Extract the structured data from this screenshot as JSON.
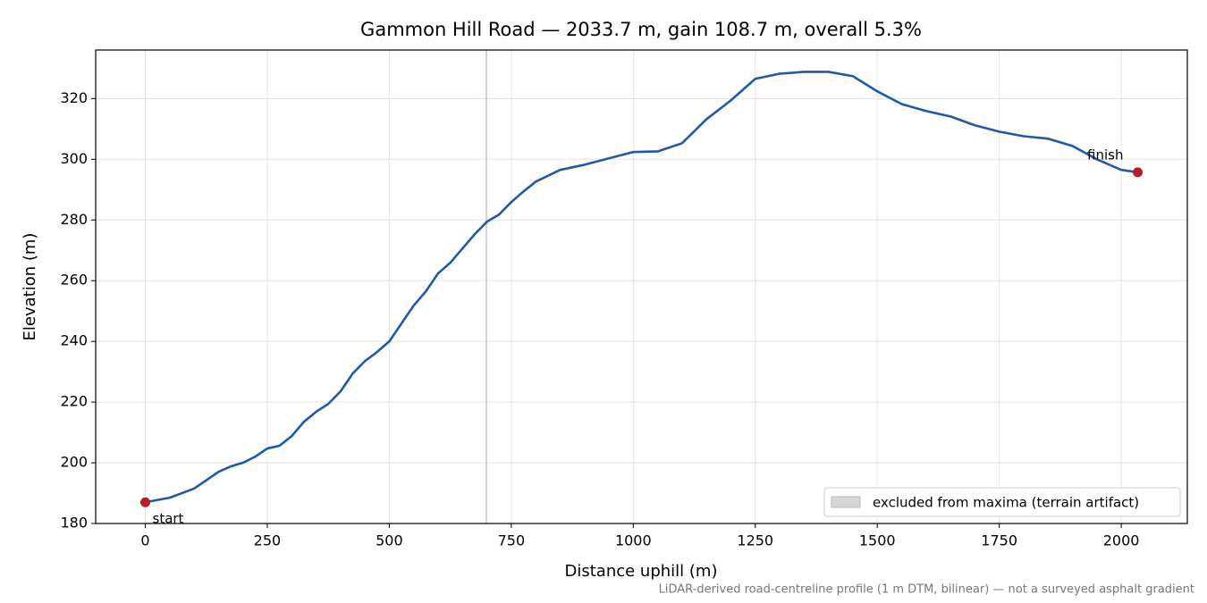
{
  "chart_data": {
    "type": "line",
    "title": "Gammon Hill Road — 2033.7 m, gain 108.7 m, overall 5.3%",
    "x_label": "Distance uphill (m)",
    "y_label": "Elevation (m)",
    "footnote": "LiDAR-derived road-centreline profile (1 m DTM, bilinear) — not a surveyed asphalt gradient",
    "x": [
      0,
      50,
      100,
      150,
      175,
      200,
      225,
      250,
      275,
      300,
      325,
      350,
      375,
      400,
      425,
      450,
      475,
      500,
      525,
      550,
      575,
      600,
      625,
      650,
      675,
      700,
      725,
      750,
      775,
      800,
      850,
      900,
      950,
      1000,
      1050,
      1100,
      1150,
      1200,
      1250,
      1300,
      1350,
      1400,
      1450,
      1500,
      1550,
      1600,
      1650,
      1700,
      1750,
      1800,
      1850,
      1900,
      1950,
      2000,
      2033.7
    ],
    "series": [
      {
        "name": "elevation",
        "color": "#1f5aa6",
        "marker_color": "#c0182b",
        "values": [
          187,
          188.5,
          191.5,
          197,
          198.8,
          200,
          202,
          204.7,
          205.6,
          208.8,
          213.5,
          216.8,
          219.4,
          223.5,
          229.4,
          233.5,
          236.5,
          240,
          245.9,
          251.8,
          256.5,
          262.4,
          265.9,
          270.6,
          275.3,
          279.4,
          281.8,
          285.9,
          289.4,
          292.6,
          296.5,
          298.2,
          300.3,
          302.4,
          302.6,
          305.3,
          313.2,
          319.4,
          326.5,
          328.2,
          328.8,
          328.8,
          327.4,
          322.4,
          318.2,
          315.9,
          314.1,
          311.2,
          309.1,
          307.6,
          306.8,
          304.4,
          300,
          296.5,
          295.7
        ]
      }
    ],
    "annotations": [
      "start",
      "finish"
    ],
    "excluded_span": [
      697,
      701
    ],
    "excluded_color": "#cccccc",
    "excluded_label": "excluded from maxima (terrain artifact)",
    "legend": "lower right",
    "grid": true,
    "xlim": [
      -101.7,
      2135.4
    ],
    "ylim": [
      180,
      336
    ],
    "xticks": [
      0,
      250,
      500,
      750,
      1000,
      1250,
      1500,
      1750,
      2000
    ],
    "yticks": [
      180,
      200,
      220,
      240,
      260,
      280,
      300,
      320
    ]
  }
}
